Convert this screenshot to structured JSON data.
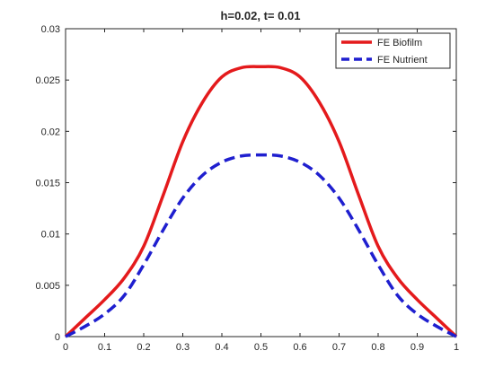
{
  "chart_data": {
    "type": "line",
    "title": "h=0.02, t=  0.01",
    "xlabel": "",
    "ylabel": "",
    "xlim": [
      0,
      1
    ],
    "ylim": [
      0,
      0.03
    ],
    "xticks": [
      "0",
      "0.1",
      "0.2",
      "0.3",
      "0.4",
      "0.5",
      "0.6",
      "0.7",
      "0.8",
      "0.9",
      "1"
    ],
    "yticks": [
      "0",
      "0.005",
      "0.01",
      "0.015",
      "0.02",
      "0.025",
      "0.03"
    ],
    "grid": false,
    "legend_position": "top-right",
    "x": [
      0,
      0.05,
      0.1,
      0.15,
      0.2,
      0.25,
      0.3,
      0.35,
      0.4,
      0.45,
      0.5,
      0.55,
      0.6,
      0.65,
      0.7,
      0.75,
      0.8,
      0.85,
      0.9,
      0.95,
      1
    ],
    "series": [
      {
        "name": "FE Biofilm",
        "color": "#e41a1c",
        "style": "solid",
        "values": [
          0,
          0.0018,
          0.0036,
          0.0057,
          0.0088,
          0.0138,
          0.019,
          0.0228,
          0.0253,
          0.0262,
          0.0263,
          0.0262,
          0.0253,
          0.0228,
          0.019,
          0.0138,
          0.0088,
          0.0057,
          0.0036,
          0.0018,
          0
        ]
      },
      {
        "name": "FE Nutrient",
        "color": "#1f1fcf",
        "style": "dashed",
        "values": [
          0,
          0.001,
          0.0022,
          0.004,
          0.007,
          0.0104,
          0.0135,
          0.0157,
          0.017,
          0.0176,
          0.0177,
          0.0176,
          0.017,
          0.0157,
          0.0135,
          0.0104,
          0.007,
          0.004,
          0.0022,
          0.001,
          0
        ]
      }
    ]
  }
}
